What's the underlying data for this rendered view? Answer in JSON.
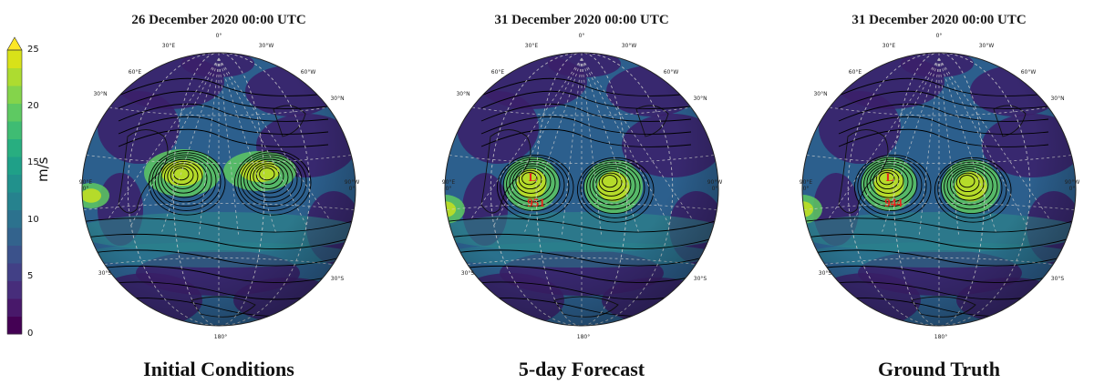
{
  "colorbar": {
    "unit": "m/s",
    "ticks": [
      "0",
      "5",
      "10",
      "15",
      "20",
      "25"
    ],
    "colors": [
      "#440154",
      "#48186a",
      "#472d7b",
      "#424086",
      "#3b528b",
      "#33638d",
      "#2c728e",
      "#26828e",
      "#21918c",
      "#1fa088",
      "#28ae80",
      "#3fbc73",
      "#5ec962",
      "#84d44b",
      "#addc30",
      "#d8e219"
    ],
    "extend_color": "#fde725"
  },
  "panels": [
    {
      "date": "26 December 2020 00:00 UTC",
      "caption": "Initial Conditions",
      "low_label": null,
      "labels": {
        "top": "0°",
        "nw": "30°E",
        "ne": "30°W",
        "w60": "60°E",
        "e60": "60°W",
        "w30": "30°N",
        "e30": "30°N",
        "wside": "90°E\n0°",
        "eside": "90°W\n0°",
        "sw": "30°S",
        "se": "30°S",
        "bottom": "180°"
      }
    },
    {
      "date": "31 December 2020 00:00 UTC",
      "caption": "5-day Forecast",
      "low_label": {
        "mark": "L",
        "value": "951"
      },
      "labels": {
        "top": "0°",
        "nw": "30°E",
        "ne": "30°W",
        "w60": "60°E",
        "e60": "60°W",
        "w30": "30°N",
        "e30": "30°N",
        "wside": "90°E\n0°",
        "eside": "90°W\n0°",
        "sw": "30°S",
        "se": "30°S",
        "bottom": "180°"
      }
    },
    {
      "date": "31 December 2020 00:00 UTC",
      "caption": "Ground Truth",
      "low_label": {
        "mark": "L",
        "value": "944"
      },
      "labels": {
        "top": "0°",
        "nw": "30°E",
        "ne": "30°W",
        "w60": "60°E",
        "e60": "60°W",
        "w30": "30°N",
        "e30": "30°N",
        "wside": "90°E\n0°",
        "eside": "90°W\n0°",
        "sw": "30°S",
        "se": "30°S",
        "bottom": "180°"
      }
    }
  ]
}
